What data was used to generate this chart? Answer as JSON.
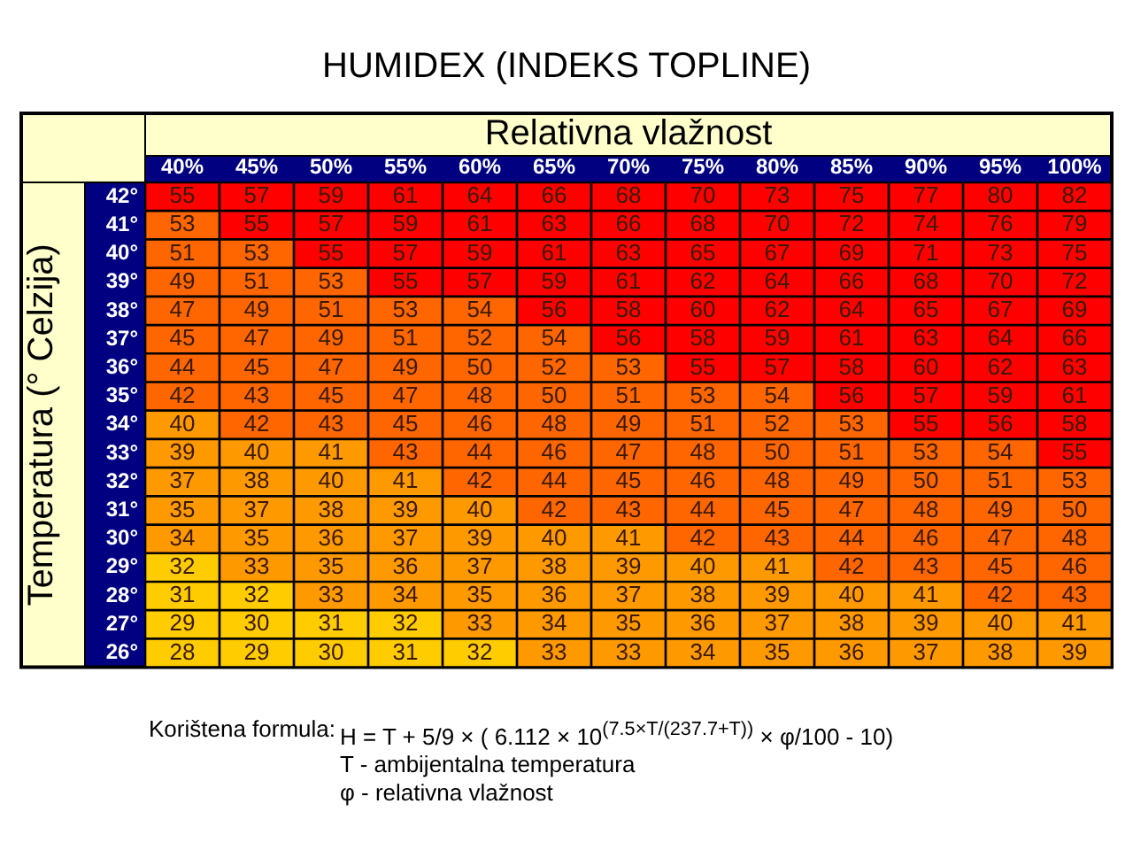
{
  "chart_data": {
    "type": "heatmap",
    "data_labels": true,
    "title": "HUMIDEX (INDEKS TOPLINE)",
    "xlabel": "Relativna vlažnost",
    "ylabel": "Temperatura (° Celzija)",
    "categories": [
      "40%",
      "45%",
      "50%",
      "55%",
      "60%",
      "65%",
      "70%",
      "75%",
      "80%",
      "85%",
      "90%",
      "95%",
      "100%"
    ],
    "y_categories": [
      "42°",
      "41°",
      "40°",
      "39°",
      "38°",
      "37°",
      "36°",
      "35°",
      "34°",
      "33°",
      "32°",
      "31°",
      "30°",
      "29°",
      "28°",
      "27°",
      "26°"
    ],
    "cells": [
      [
        55,
        57,
        59,
        61,
        64,
        66,
        68,
        70,
        73,
        75,
        77,
        80,
        82
      ],
      [
        53,
        55,
        57,
        59,
        61,
        63,
        66,
        68,
        70,
        72,
        74,
        76,
        79
      ],
      [
        51,
        53,
        55,
        57,
        59,
        61,
        63,
        65,
        67,
        69,
        71,
        73,
        75
      ],
      [
        49,
        51,
        53,
        55,
        57,
        59,
        61,
        62,
        64,
        66,
        68,
        70,
        72
      ],
      [
        47,
        49,
        51,
        53,
        54,
        56,
        58,
        60,
        62,
        64,
        65,
        67,
        69
      ],
      [
        45,
        47,
        49,
        51,
        52,
        54,
        56,
        58,
        59,
        61,
        63,
        64,
        66
      ],
      [
        44,
        45,
        47,
        49,
        50,
        52,
        53,
        55,
        57,
        58,
        60,
        62,
        63
      ],
      [
        42,
        43,
        45,
        47,
        48,
        50,
        51,
        53,
        54,
        56,
        57,
        59,
        61
      ],
      [
        40,
        42,
        43,
        45,
        46,
        48,
        49,
        51,
        52,
        53,
        55,
        56,
        58
      ],
      [
        39,
        40,
        41,
        43,
        44,
        46,
        47,
        48,
        50,
        51,
        53,
        54,
        55
      ],
      [
        37,
        38,
        40,
        41,
        42,
        44,
        45,
        46,
        48,
        49,
        50,
        51,
        53
      ],
      [
        35,
        37,
        38,
        39,
        40,
        42,
        43,
        44,
        45,
        47,
        48,
        49,
        50
      ],
      [
        34,
        35,
        36,
        37,
        39,
        40,
        41,
        42,
        43,
        44,
        46,
        47,
        48
      ],
      [
        32,
        33,
        35,
        36,
        37,
        38,
        39,
        40,
        41,
        42,
        43,
        45,
        46
      ],
      [
        31,
        32,
        33,
        34,
        35,
        36,
        37,
        38,
        39,
        40,
        41,
        42,
        43
      ],
      [
        29,
        30,
        31,
        32,
        33,
        34,
        35,
        36,
        37,
        38,
        39,
        40,
        41
      ],
      [
        28,
        29,
        30,
        31,
        32,
        33,
        33,
        34,
        35,
        36,
        37,
        38,
        39
      ]
    ],
    "annotations": [
      "Korištena formula:",
      "H = T + 5/9 × ( 6.112 × 10$^{(7.5×T/(237.7+T))}$ × φ/100 - 10)",
      "T - ambijentalna temperatura",
      "φ - relativna vlažnost"
    ]
  }
}
